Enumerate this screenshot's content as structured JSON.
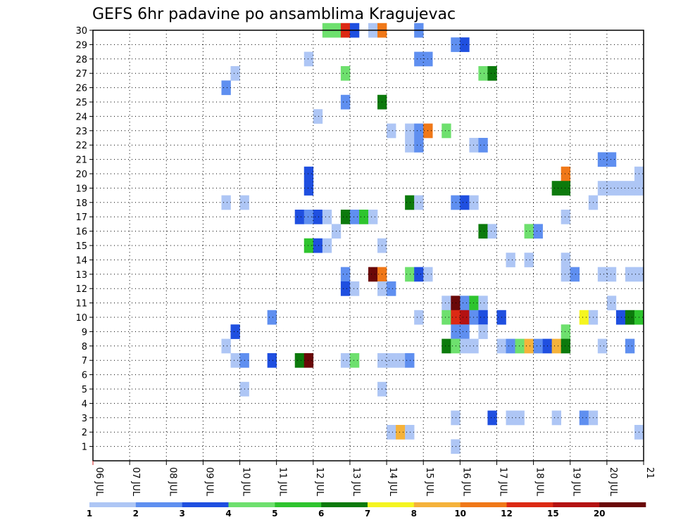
{
  "chart_data": {
    "type": "heatmap",
    "title": "GEFS 6hr padavine po ansamblima Kragujevac",
    "x_tick_labels": [
      "06 JUL",
      "07 JUL",
      "08 JUL",
      "09 JUL",
      "10 JUL",
      "11 JUL",
      "12 JUL",
      "13 JUL",
      "14 JUL",
      "15 JUL",
      "16 JUL",
      "17 JUL",
      "18 JUL",
      "19 JUL",
      "20 JUL",
      "21"
    ],
    "x_range_days": [
      6,
      21
    ],
    "y_tick_labels": [
      "1",
      "2",
      "3",
      "4",
      "5",
      "6",
      "7",
      "8",
      "9",
      "10",
      "11",
      "12",
      "13",
      "14",
      "15",
      "16",
      "17",
      "18",
      "19",
      "20",
      "21",
      "22",
      "23",
      "24",
      "25",
      "26",
      "27",
      "28",
      "29",
      "30"
    ],
    "y_range": [
      0,
      30
    ],
    "grid": "dotted",
    "legend_position": "bottom",
    "legend_labels": [
      "1",
      "2",
      "3",
      "4",
      "5",
      "6",
      "7",
      "8",
      "10",
      "12",
      "15",
      "20"
    ],
    "legend_colors": [
      "#aec6f5",
      "#5f8ff0",
      "#1f4fe0",
      "#6ee06e",
      "#2ec42e",
      "#0c7a0c",
      "#f5f520",
      "#f5b23a",
      "#f07818",
      "#dc2a14",
      "#b41212",
      "#6a0808"
    ],
    "levels": [
      "#aec6f5",
      "#5f8ff0",
      "#1f4fe0",
      "#6ee06e",
      "#2ec42e",
      "#0c7a0c",
      "#f5f520",
      "#f5b23a",
      "#f07818",
      "#dc2a14",
      "#b41212",
      "#6a0808"
    ],
    "cells": [
      {
        "member": 30,
        "day": 12.25,
        "level": 3
      },
      {
        "member": 30,
        "day": 12.5,
        "level": 3
      },
      {
        "member": 30,
        "day": 12.75,
        "level": 9
      },
      {
        "member": 30,
        "day": 13.0,
        "level": 2
      },
      {
        "member": 30,
        "day": 13.5,
        "level": 0
      },
      {
        "member": 30,
        "day": 13.75,
        "level": 8
      },
      {
        "member": 30,
        "day": 14.75,
        "level": 1
      },
      {
        "member": 29,
        "day": 15.75,
        "level": 1
      },
      {
        "member": 29,
        "day": 16.0,
        "level": 2
      },
      {
        "member": 28,
        "day": 11.75,
        "level": 0
      },
      {
        "member": 28,
        "day": 14.75,
        "level": 1
      },
      {
        "member": 28,
        "day": 15.0,
        "level": 1
      },
      {
        "member": 27,
        "day": 9.75,
        "level": 0
      },
      {
        "member": 27,
        "day": 12.75,
        "level": 3
      },
      {
        "member": 27,
        "day": 16.5,
        "level": 3
      },
      {
        "member": 27,
        "day": 16.75,
        "level": 5
      },
      {
        "member": 26,
        "day": 9.5,
        "level": 1
      },
      {
        "member": 25,
        "day": 12.75,
        "level": 1
      },
      {
        "member": 25,
        "day": 13.75,
        "level": 5
      },
      {
        "member": 24,
        "day": 12.0,
        "level": 0
      },
      {
        "member": 23,
        "day": 14.0,
        "level": 0
      },
      {
        "member": 23,
        "day": 14.5,
        "level": 0
      },
      {
        "member": 23,
        "day": 14.75,
        "level": 1
      },
      {
        "member": 23,
        "day": 15.0,
        "level": 8
      },
      {
        "member": 23,
        "day": 15.5,
        "level": 3
      },
      {
        "member": 22,
        "day": 14.5,
        "level": 0
      },
      {
        "member": 22,
        "day": 14.75,
        "level": 1
      },
      {
        "member": 22,
        "day": 16.25,
        "level": 0
      },
      {
        "member": 22,
        "day": 16.5,
        "level": 1
      },
      {
        "member": 21,
        "day": 19.75,
        "level": 1
      },
      {
        "member": 21,
        "day": 20.0,
        "level": 1
      },
      {
        "member": 20,
        "day": 11.75,
        "level": 2
      },
      {
        "member": 20,
        "day": 18.75,
        "level": 8
      },
      {
        "member": 20,
        "day": 20.75,
        "level": 0
      },
      {
        "member": 19,
        "day": 11.75,
        "level": 2
      },
      {
        "member": 19,
        "day": 18.5,
        "level": 5
      },
      {
        "member": 19,
        "day": 18.75,
        "level": 5
      },
      {
        "member": 19,
        "day": 19.75,
        "level": 0
      },
      {
        "member": 19,
        "day": 20.0,
        "level": 0
      },
      {
        "member": 19,
        "day": 20.25,
        "level": 0
      },
      {
        "member": 19,
        "day": 20.5,
        "level": 0
      },
      {
        "member": 19,
        "day": 20.75,
        "level": 0
      },
      {
        "member": 18,
        "day": 9.5,
        "level": 0
      },
      {
        "member": 18,
        "day": 10.0,
        "level": 0
      },
      {
        "member": 18,
        "day": 14.5,
        "level": 5
      },
      {
        "member": 18,
        "day": 14.75,
        "level": 0
      },
      {
        "member": 18,
        "day": 15.75,
        "level": 1
      },
      {
        "member": 18,
        "day": 16.0,
        "level": 2
      },
      {
        "member": 18,
        "day": 16.25,
        "level": 0
      },
      {
        "member": 18,
        "day": 19.5,
        "level": 0
      },
      {
        "member": 17,
        "day": 11.5,
        "level": 2
      },
      {
        "member": 17,
        "day": 11.75,
        "level": 1
      },
      {
        "member": 17,
        "day": 12.0,
        "level": 2
      },
      {
        "member": 17,
        "day": 12.25,
        "level": 0
      },
      {
        "member": 17,
        "day": 12.75,
        "level": 5
      },
      {
        "member": 17,
        "day": 13.0,
        "level": 1
      },
      {
        "member": 17,
        "day": 13.25,
        "level": 4
      },
      {
        "member": 17,
        "day": 13.5,
        "level": 0
      },
      {
        "member": 17,
        "day": 18.75,
        "level": 0
      },
      {
        "member": 16,
        "day": 12.5,
        "level": 0
      },
      {
        "member": 16,
        "day": 16.5,
        "level": 5
      },
      {
        "member": 16,
        "day": 16.75,
        "level": 0
      },
      {
        "member": 16,
        "day": 17.75,
        "level": 3
      },
      {
        "member": 16,
        "day": 18.0,
        "level": 1
      },
      {
        "member": 15,
        "day": 11.75,
        "level": 4
      },
      {
        "member": 15,
        "day": 12.0,
        "level": 2
      },
      {
        "member": 15,
        "day": 12.25,
        "level": 0
      },
      {
        "member": 15,
        "day": 13.75,
        "level": 0
      },
      {
        "member": 14,
        "day": 17.25,
        "level": 0
      },
      {
        "member": 14,
        "day": 17.75,
        "level": 0
      },
      {
        "member": 14,
        "day": 18.75,
        "level": 0
      },
      {
        "member": 13,
        "day": 12.75,
        "level": 1
      },
      {
        "member": 13,
        "day": 13.5,
        "level": 11
      },
      {
        "member": 13,
        "day": 13.75,
        "level": 8
      },
      {
        "member": 13,
        "day": 14.5,
        "level": 3
      },
      {
        "member": 13,
        "day": 14.75,
        "level": 2
      },
      {
        "member": 13,
        "day": 15.0,
        "level": 0
      },
      {
        "member": 13,
        "day": 18.75,
        "level": 0
      },
      {
        "member": 13,
        "day": 19.0,
        "level": 1
      },
      {
        "member": 13,
        "day": 19.75,
        "level": 0
      },
      {
        "member": 13,
        "day": 20.0,
        "level": 0
      },
      {
        "member": 13,
        "day": 20.5,
        "level": 0
      },
      {
        "member": 13,
        "day": 20.75,
        "level": 0
      },
      {
        "member": 12,
        "day": 12.75,
        "level": 2
      },
      {
        "member": 12,
        "day": 13.0,
        "level": 0
      },
      {
        "member": 12,
        "day": 13.75,
        "level": 0
      },
      {
        "member": 12,
        "day": 14.0,
        "level": 1
      },
      {
        "member": 11,
        "day": 15.5,
        "level": 0
      },
      {
        "member": 11,
        "day": 15.75,
        "level": 11
      },
      {
        "member": 11,
        "day": 16.0,
        "level": 1
      },
      {
        "member": 11,
        "day": 16.25,
        "level": 4
      },
      {
        "member": 11,
        "day": 16.5,
        "level": 0
      },
      {
        "member": 11,
        "day": 20.0,
        "level": 0
      },
      {
        "member": 10,
        "day": 10.75,
        "level": 1
      },
      {
        "member": 10,
        "day": 14.75,
        "level": 0
      },
      {
        "member": 10,
        "day": 15.5,
        "level": 3
      },
      {
        "member": 10,
        "day": 15.75,
        "level": 9
      },
      {
        "member": 10,
        "day": 16.0,
        "level": 10
      },
      {
        "member": 10,
        "day": 16.25,
        "level": 1
      },
      {
        "member": 10,
        "day": 16.5,
        "level": 2
      },
      {
        "member": 10,
        "day": 17.0,
        "level": 2
      },
      {
        "member": 10,
        "day": 19.25,
        "level": 6
      },
      {
        "member": 10,
        "day": 19.5,
        "level": 0
      },
      {
        "member": 10,
        "day": 20.25,
        "level": 2
      },
      {
        "member": 10,
        "day": 20.5,
        "level": 5
      },
      {
        "member": 10,
        "day": 20.75,
        "level": 4
      },
      {
        "member": 9,
        "day": 9.75,
        "level": 2
      },
      {
        "member": 9,
        "day": 15.75,
        "level": 1
      },
      {
        "member": 9,
        "day": 16.0,
        "level": 1
      },
      {
        "member": 9,
        "day": 16.5,
        "level": 0
      },
      {
        "member": 9,
        "day": 18.75,
        "level": 3
      },
      {
        "member": 8,
        "day": 9.5,
        "level": 0
      },
      {
        "member": 8,
        "day": 15.5,
        "level": 5
      },
      {
        "member": 8,
        "day": 15.75,
        "level": 3
      },
      {
        "member": 8,
        "day": 16.0,
        "level": 0
      },
      {
        "member": 8,
        "day": 16.25,
        "level": 0
      },
      {
        "member": 8,
        "day": 17.0,
        "level": 0
      },
      {
        "member": 8,
        "day": 17.25,
        "level": 1
      },
      {
        "member": 8,
        "day": 17.5,
        "level": 3
      },
      {
        "member": 8,
        "day": 17.75,
        "level": 7
      },
      {
        "member": 8,
        "day": 18.0,
        "level": 1
      },
      {
        "member": 8,
        "day": 18.25,
        "level": 2
      },
      {
        "member": 8,
        "day": 18.5,
        "level": 7
      },
      {
        "member": 8,
        "day": 18.75,
        "level": 5
      },
      {
        "member": 8,
        "day": 19.75,
        "level": 0
      },
      {
        "member": 8,
        "day": 20.5,
        "level": 1
      },
      {
        "member": 7,
        "day": 9.75,
        "level": 0
      },
      {
        "member": 7,
        "day": 10.0,
        "level": 1
      },
      {
        "member": 7,
        "day": 10.75,
        "level": 2
      },
      {
        "member": 7,
        "day": 11.5,
        "level": 5
      },
      {
        "member": 7,
        "day": 11.75,
        "level": 11
      },
      {
        "member": 7,
        "day": 12.75,
        "level": 0
      },
      {
        "member": 7,
        "day": 13.0,
        "level": 3
      },
      {
        "member": 7,
        "day": 13.75,
        "level": 0
      },
      {
        "member": 7,
        "day": 14.0,
        "level": 0
      },
      {
        "member": 7,
        "day": 14.25,
        "level": 0
      },
      {
        "member": 7,
        "day": 14.5,
        "level": 1
      },
      {
        "member": 5,
        "day": 10.0,
        "level": 0
      },
      {
        "member": 5,
        "day": 13.75,
        "level": 0
      },
      {
        "member": 3,
        "day": 15.75,
        "level": 0
      },
      {
        "member": 3,
        "day": 16.75,
        "level": 2
      },
      {
        "member": 3,
        "day": 17.25,
        "level": 0
      },
      {
        "member": 3,
        "day": 17.5,
        "level": 0
      },
      {
        "member": 3,
        "day": 18.5,
        "level": 0
      },
      {
        "member": 3,
        "day": 19.25,
        "level": 1
      },
      {
        "member": 3,
        "day": 19.5,
        "level": 0
      },
      {
        "member": 2,
        "day": 14.0,
        "level": 0
      },
      {
        "member": 2,
        "day": 14.25,
        "level": 7
      },
      {
        "member": 2,
        "day": 14.5,
        "level": 0
      },
      {
        "member": 2,
        "day": 20.75,
        "level": 0
      },
      {
        "member": 1,
        "day": 15.75,
        "level": 0
      }
    ]
  }
}
